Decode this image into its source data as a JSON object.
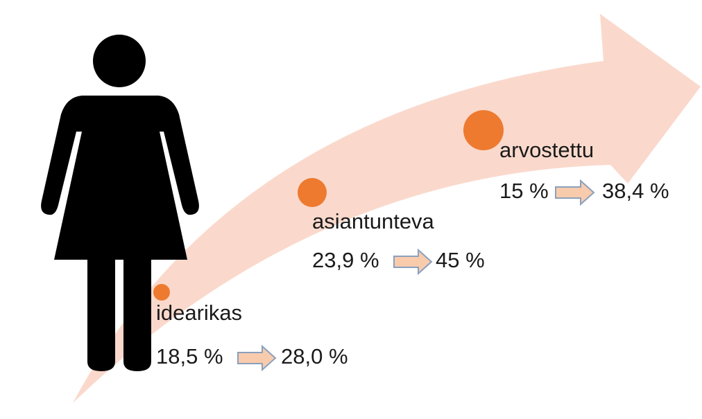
{
  "items": [
    {
      "label": "idearikas",
      "from": "18,5 %",
      "to": "28,0 %"
    },
    {
      "label": "asiantunteva",
      "from": "23,9 %",
      "to": "45 %"
    },
    {
      "label": "arvostettu",
      "from": "15 %",
      "to": "38,4 %"
    }
  ]
}
